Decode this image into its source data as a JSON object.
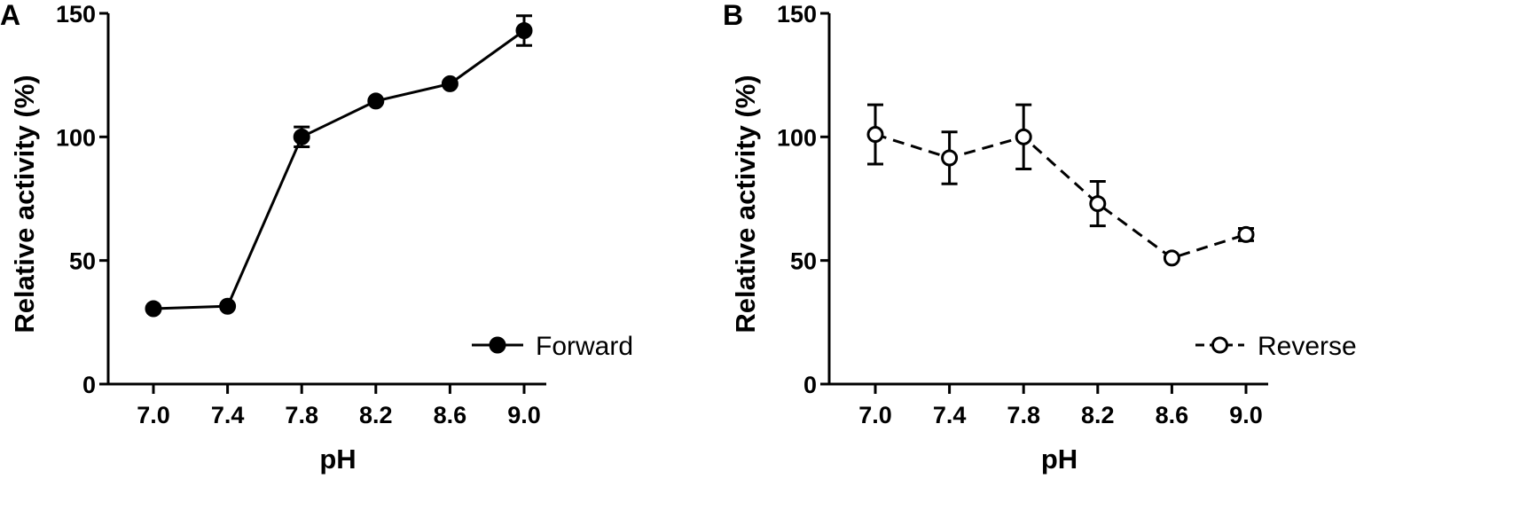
{
  "chart_data": [
    {
      "type": "line",
      "panel_label": "A",
      "categories": [
        "7.0",
        "7.4",
        "7.8",
        "8.2",
        "8.6",
        "9.0"
      ],
      "series": [
        {
          "name": "Forward",
          "values": [
            30.5,
            31.5,
            100,
            114.5,
            121.5,
            143
          ],
          "errors": [
            0,
            0,
            4,
            0,
            0,
            6
          ],
          "marker": "filled-circle",
          "line_style": "solid"
        }
      ],
      "xlabel": "pH",
      "ylabel": "Relative activity (%)",
      "ylim": [
        0,
        150
      ],
      "yticks": [
        "0",
        "50",
        "100",
        "150"
      ],
      "legend_position": "bottom-right",
      "grid": false,
      "color": "#000000"
    },
    {
      "type": "line",
      "panel_label": "B",
      "categories": [
        "7.0",
        "7.4",
        "7.8",
        "8.2",
        "8.6",
        "9.0"
      ],
      "series": [
        {
          "name": "Reverse",
          "values": [
            101,
            91.5,
            100,
            73,
            51,
            60.5
          ],
          "errors": [
            12,
            10.5,
            13,
            9,
            0,
            2.5
          ],
          "marker": "open-circle",
          "line_style": "dashed"
        }
      ],
      "xlabel": "pH",
      "ylabel": "Relative activity (%)",
      "ylim": [
        0,
        150
      ],
      "yticks": [
        "0",
        "50",
        "100",
        "150"
      ],
      "legend_position": "bottom-right",
      "grid": false,
      "color": "#000000"
    }
  ]
}
